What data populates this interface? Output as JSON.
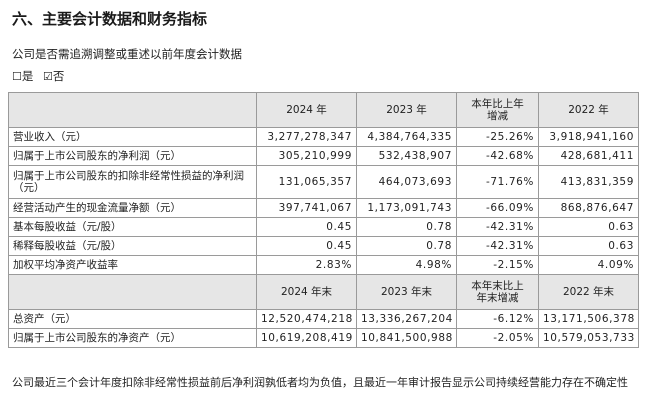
{
  "section_title": "六、主要会计数据和财务指标",
  "question": "公司是否需追溯调整或重述以前年度会计数据",
  "options": [
    {
      "box": "☐",
      "label": "是"
    },
    {
      "box": "☑",
      "label": "否"
    }
  ],
  "table1": {
    "headers": [
      "",
      "2024 年",
      "2023 年",
      "本年比上年\n增减",
      "2022 年"
    ],
    "rows": [
      {
        "label": "营业收入（元）",
        "v2024": "3,277,278,347",
        "v2023": "4,384,764,335",
        "change": "-25.26%",
        "v2022": "3,918,941,160"
      },
      {
        "label": "归属于上市公司股东的净利润（元）",
        "v2024": "305,210,999",
        "v2023": "532,438,907",
        "change": "-42.68%",
        "v2022": "428,681,411"
      },
      {
        "label": "归属于上市公司股东的扣除非经常性损益的净利润（元）",
        "v2024": "131,065,357",
        "v2023": "464,073,693",
        "change": "-71.76%",
        "v2022": "413,831,359"
      },
      {
        "label": "经营活动产生的现金流量净额（元）",
        "v2024": "397,741,067",
        "v2023": "1,173,091,743",
        "change": "-66.09%",
        "v2022": "868,876,647"
      },
      {
        "label": "基本每股收益（元/股）",
        "v2024": "0.45",
        "v2023": "0.78",
        "change": "-42.31%",
        "v2022": "0.63"
      },
      {
        "label": "稀释每股收益（元/股）",
        "v2024": "0.45",
        "v2023": "0.78",
        "change": "-42.31%",
        "v2022": "0.63"
      },
      {
        "label": "加权平均净资产收益率",
        "v2024": "2.83%",
        "v2023": "4.98%",
        "change": "-2.15%",
        "v2022": "4.09%"
      }
    ]
  },
  "table2": {
    "headers": [
      "",
      "2024 年末",
      "2023 年末",
      "本年末比上\n年末增减",
      "2022 年末"
    ],
    "rows": [
      {
        "label": "总资产（元）",
        "v2024": "12,520,474,218",
        "v2023": "13,336,267,204",
        "change": "-6.12%",
        "v2022": "13,171,506,378"
      },
      {
        "label": "归属于上市公司股东的净资产（元）",
        "v2024": "10,619,208,419",
        "v2023": "10,841,500,988",
        "change": "-2.05%",
        "v2022": "10,579,053,733"
      }
    ]
  },
  "footnote": "公司最近三个会计年度扣除非经常性损益前后净利润孰低者均为负值，且最近一年审计报告显示公司持续经营能力存在不确定性"
}
